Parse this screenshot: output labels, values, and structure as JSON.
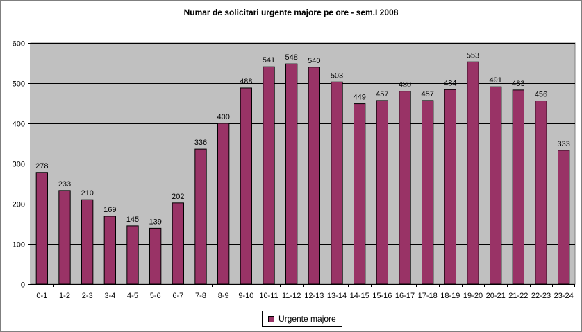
{
  "chart_data": {
    "type": "bar",
    "title": "Numar de solicitari urgente majore pe ore - sem.I 2008",
    "xlabel": "",
    "ylabel": "",
    "ylim": [
      0,
      600
    ],
    "yticks": [
      0,
      100,
      200,
      300,
      400,
      500,
      600
    ],
    "grid": true,
    "legend_position": "bottom",
    "plot_background": "#c0c0c0",
    "categories": [
      "0-1",
      "1-2",
      "2-3",
      "3-4",
      "4-5",
      "5-6",
      "6-7",
      "7-8",
      "8-9",
      "9-10",
      "10-11",
      "11-12",
      "12-13",
      "13-14",
      "14-15",
      "15-16",
      "16-17",
      "17-18",
      "18-19",
      "19-20",
      "20-21",
      "21-22",
      "22-23",
      "23-24"
    ],
    "series": [
      {
        "name": "Urgente majore",
        "color": "#993366",
        "values": [
          278,
          233,
          210,
          169,
          145,
          139,
          202,
          336,
          400,
          488,
          541,
          548,
          540,
          503,
          449,
          457,
          480,
          457,
          484,
          553,
          491,
          483,
          456,
          333
        ]
      }
    ]
  }
}
